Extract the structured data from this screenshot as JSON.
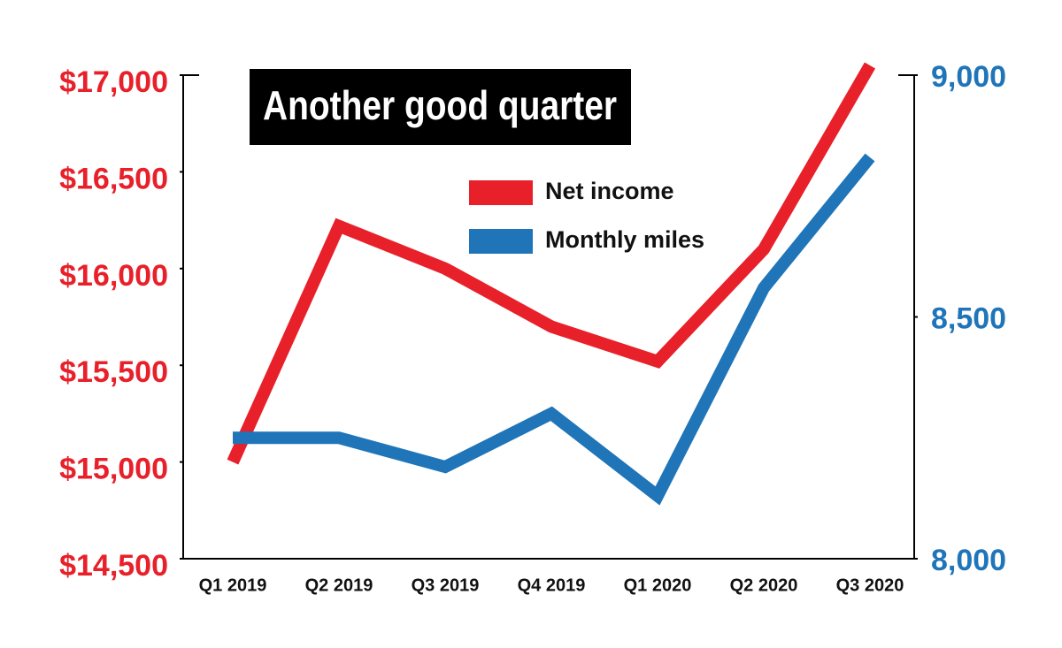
{
  "chart_data": {
    "type": "line",
    "title": "Another good quarter",
    "categories": [
      "Q1 2019",
      "Q2 2019",
      "Q3 2019",
      "Q4 2019",
      "Q1 2020",
      "Q2 2020",
      "Q3 2020"
    ],
    "series": [
      {
        "name": "Net income",
        "color": "#e8202a",
        "values": [
          15000,
          16220,
          16000,
          15700,
          15520,
          16100,
          17050
        ]
      },
      {
        "name": "Monthly miles",
        "color": "#1f75b8",
        "axis": "y2",
        "values": [
          8250,
          8250,
          8190,
          8300,
          8130,
          8560,
          8830
        ]
      }
    ],
    "ylim": [
      14500,
      17000
    ],
    "yticks": [
      {
        "value": 14500,
        "label": "$14,500"
      },
      {
        "value": 15000,
        "label": "$15,000"
      },
      {
        "value": 15500,
        "label": "$15,500"
      },
      {
        "value": 16000,
        "label": "$16,000"
      },
      {
        "value": 16500,
        "label": "$16,500"
      },
      {
        "value": 17000,
        "label": "$17,000"
      }
    ],
    "y2lim": [
      8000,
      9000
    ],
    "y2ticks": [
      {
        "value": 8000,
        "label": "8,000"
      },
      {
        "value": 8500,
        "label": "8,500"
      },
      {
        "value": 9000,
        "label": "9,000"
      }
    ],
    "grid": false
  }
}
